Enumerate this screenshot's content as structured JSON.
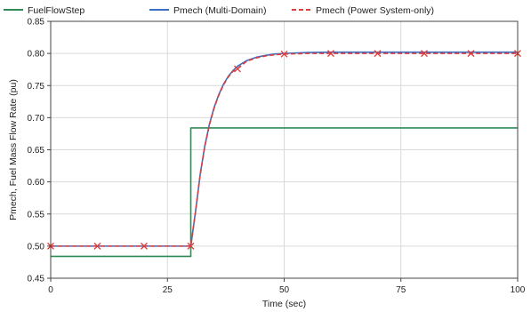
{
  "chart_data": {
    "type": "line",
    "xlabel": "Time (sec)",
    "ylabel": "Pmech, Fuel Mass Flow Rate (pu)",
    "xlim": [
      0,
      100
    ],
    "ylim": [
      0.45,
      0.85
    ],
    "xticks": [
      0,
      25,
      50,
      75,
      100
    ],
    "yticks": [
      0.45,
      0.5,
      0.55,
      0.6,
      0.65,
      0.7,
      0.75,
      0.8,
      0.85
    ],
    "xtick_labels": [
      "0",
      "25",
      "50",
      "75",
      "100"
    ],
    "ytick_labels": [
      "0.45",
      "0.50",
      "0.55",
      "0.60",
      "0.65",
      "0.70",
      "0.75",
      "0.80",
      "0.85"
    ],
    "grid": true,
    "legend_position": "top",
    "series": [
      {
        "name": "FuelFlowStep",
        "color": "#2e8b57",
        "style": "solid",
        "x": [
          0,
          30,
          30,
          100
        ],
        "y": [
          0.484,
          0.484,
          0.684,
          0.684
        ]
      },
      {
        "name": "Pmech (Multi-Domain)",
        "color": "#3a6fc4",
        "style": "solid",
        "x": [
          0,
          30,
          31,
          32,
          33,
          34,
          35,
          36,
          37,
          38,
          39,
          40,
          42,
          44,
          46,
          48,
          50,
          55,
          60,
          70,
          80,
          90,
          100
        ],
        "y": [
          0.5,
          0.5,
          0.553,
          0.611,
          0.656,
          0.69,
          0.716,
          0.736,
          0.752,
          0.764,
          0.773,
          0.78,
          0.789,
          0.794,
          0.797,
          0.799,
          0.8,
          0.8015,
          0.802,
          0.802,
          0.802,
          0.802,
          0.802
        ]
      },
      {
        "name": "Pmech (Power System-only)",
        "color": "#e03c3c",
        "style": "dashed",
        "marker": "x",
        "marker_x": [
          0,
          10,
          20,
          30,
          40,
          50,
          60,
          70,
          80,
          90,
          100
        ],
        "x": [
          0,
          30,
          31,
          32,
          33,
          34,
          35,
          36,
          37,
          38,
          39,
          40,
          42,
          44,
          46,
          48,
          50,
          55,
          60,
          70,
          80,
          90,
          100
        ],
        "y": [
          0.5,
          0.5,
          0.552,
          0.61,
          0.655,
          0.689,
          0.715,
          0.735,
          0.751,
          0.763,
          0.772,
          0.776,
          0.788,
          0.793,
          0.796,
          0.798,
          0.799,
          0.8,
          0.8,
          0.8,
          0.8,
          0.8,
          0.8
        ]
      }
    ]
  }
}
